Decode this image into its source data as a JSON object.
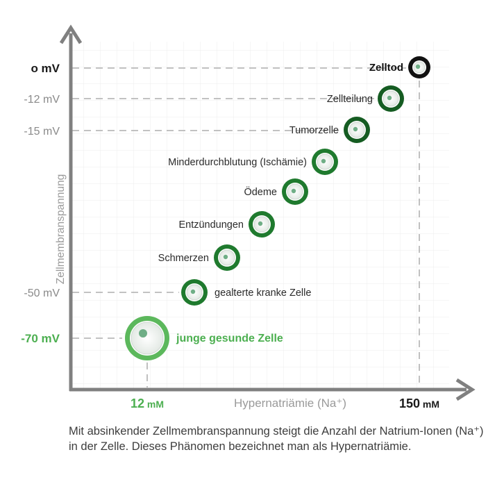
{
  "chart_data": {
    "type": "scatter",
    "ylabel": "Zellmembranspannung",
    "xlabel": "Hypernatriämie (Na⁺)",
    "y_ticks": [
      {
        "value": 0,
        "label": "o mV",
        "style": "bold-dark"
      },
      {
        "value": -12,
        "label": "-12 mV",
        "style": "grey"
      },
      {
        "value": -15,
        "label": "-15 mV",
        "style": "grey"
      },
      {
        "value": -50,
        "label": "-50 mV",
        "style": "grey"
      },
      {
        "value": -70,
        "label": "-70 mV",
        "style": "bold-green"
      }
    ],
    "x_ticks": [
      {
        "value": 12,
        "num": "12",
        "unit": "mM",
        "style": "green"
      },
      {
        "value": 150,
        "num": "150",
        "unit": "mM",
        "style": "dark"
      }
    ],
    "points": [
      {
        "label": "junge gesunde Zelle",
        "label_side": "right",
        "label_style": "green",
        "ring": "light-green",
        "size": "large"
      },
      {
        "label": "gealterte kranke Zelle",
        "label_side": "right",
        "label_style": "normal",
        "ring": "dark-green",
        "size": "small"
      },
      {
        "label": "Schmerzen",
        "label_side": "left",
        "label_style": "normal",
        "ring": "dark-green",
        "size": "small"
      },
      {
        "label": "Entzündungen",
        "label_side": "left",
        "label_style": "normal",
        "ring": "dark-green",
        "size": "small"
      },
      {
        "label": "Ödeme",
        "label_side": "left",
        "label_style": "normal",
        "ring": "dark-green",
        "size": "small"
      },
      {
        "label": "Minderdurchblutung (Ischämie)",
        "label_side": "left",
        "label_style": "normal",
        "ring": "dark-green",
        "size": "small"
      },
      {
        "label": "Tumorzelle",
        "label_side": "left",
        "label_style": "normal",
        "ring": "darker-green",
        "size": "small"
      },
      {
        "label": "Zellteilung",
        "label_side": "left",
        "label_style": "normal",
        "ring": "darker-green",
        "size": "small"
      },
      {
        "label": "Zelltod",
        "label_side": "left",
        "label_style": "bold-dark",
        "ring": "black",
        "size": "small"
      }
    ],
    "grid": true
  },
  "colors": {
    "light_green": "#5cb85c",
    "dark_green": "#1f7a2e",
    "darker_green": "#155c22",
    "black": "#111111",
    "axis": "#808080",
    "tick_grey": "#8a8a8a",
    "label_green": "#4caf50"
  },
  "caption": "Mit absinkender Zellmembranspannung steigt die Anzahl der Natrium-Ionen (Na⁺) in der Zelle. Dieses Phänomen bezeichnet man als Hypernatriämie."
}
